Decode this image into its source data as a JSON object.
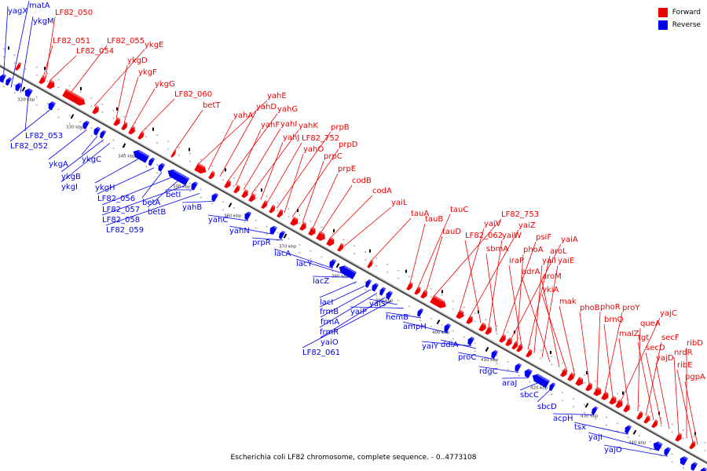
{
  "legend": {
    "forward_label": "Forward",
    "reverse_label": "Reverse",
    "forward_color": "#ee0000",
    "reverse_color": "#0000ee"
  },
  "caption": "Escherichia coli LF82 chromosome, complete sequence. - 0..4773108",
  "scale_labels": [
    "320 kbp",
    "330 kbp",
    "340 kbp",
    "350 kbp",
    "360 kbp",
    "370 kbp",
    "380 kbp",
    "390 kbp",
    "400 kbp",
    "410 kbp",
    "420 kbp",
    "430 kbp",
    "440 kbp"
  ],
  "forward_genes": [
    "LF82_050",
    "LF82_051",
    "LF82_054",
    "LF82_055",
    "ykgE",
    "ykgD",
    "ykgF",
    "ykgG",
    "LF82_060",
    "betT",
    "yahE",
    "yahA",
    "yahD",
    "yahG",
    "yahF",
    "yahI",
    "yahK",
    "yahJ",
    "LF82_752",
    "prpB",
    "yahO",
    "prpD",
    "prpC",
    "prpE",
    "codB",
    "codA",
    "yaiL",
    "tauA",
    "tauB",
    "tauC",
    "tauD",
    "LF82_753",
    "yaiV",
    "yaiZ",
    "LF82_062",
    "yaiW",
    "sbmA",
    "psiF",
    "yaiA",
    "phoA",
    "iraP",
    "aroL",
    "yaiI",
    "yaiE",
    "adrA",
    "aroM",
    "ykiA",
    "mak",
    "phoB",
    "phoR",
    "proY",
    "brnQ",
    "yajC",
    "malZ",
    "queA",
    "secF",
    "tgt",
    "secD",
    "yajD",
    "nrdR",
    "ribD",
    "ribE",
    "pgpA"
  ],
  "reverse_genes": [
    "yagX",
    "matA",
    "ykgM",
    "LF82_053",
    "LF82_052",
    "ykgA",
    "ykgC",
    "ykgB",
    "ykgI",
    "ykgH",
    "LF82_056",
    "betA",
    "LF82_057",
    "betB",
    "LF82_058",
    "betI",
    "LF82_059",
    "yahB",
    "yahC",
    "yahN",
    "prpR",
    "lacA",
    "lacY",
    "lacZ",
    "lacI",
    "frmB",
    "frmA",
    "frmR",
    "yaiO",
    "LF82_061",
    "yaiS",
    "yaiP",
    "hemB",
    "ampH",
    "yaiY",
    "ddlA",
    "proC",
    "rdgC",
    "araJ",
    "sbcC",
    "sbcD",
    "acpH",
    "tsx",
    "yajI",
    "yajO"
  ]
}
